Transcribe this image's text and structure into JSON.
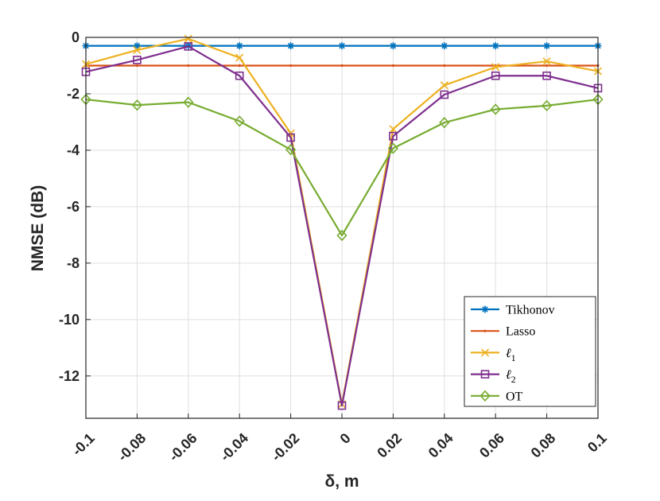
{
  "chart_data": {
    "type": "line",
    "title": "",
    "xlabel": "δ, m",
    "ylabel": "NMSE (dB)",
    "xlim": [
      -0.1,
      0.1
    ],
    "ylim": [
      -13.5,
      0
    ],
    "grid": true,
    "legend_position": "bottom-right",
    "x": [
      -0.1,
      -0.08,
      -0.06,
      -0.04,
      -0.02,
      0,
      0.02,
      0.04,
      0.06,
      0.08,
      0.1
    ],
    "x_tick_labels": [
      "-0.1",
      "-0.08",
      "-0.06",
      "-0.04",
      "-0.02",
      "0",
      "0.02",
      "0.04",
      "0.06",
      "0.08",
      "0.1"
    ],
    "y_ticks": [
      0,
      -2,
      -4,
      -6,
      -8,
      -10,
      -12
    ],
    "y_tick_labels": [
      "0",
      "-2",
      "-4",
      "-6",
      "-8",
      "-10",
      "-12"
    ],
    "series": [
      {
        "name": "Tikhonov",
        "color": "#0072BD",
        "marker": "asterisk",
        "values": [
          -0.3,
          -0.3,
          -0.3,
          -0.3,
          -0.3,
          -0.3,
          -0.3,
          -0.3,
          -0.3,
          -0.3,
          -0.3
        ]
      },
      {
        "name": "Lasso",
        "color": "#D95319",
        "marker": "point",
        "values": [
          -1.0,
          -1.0,
          -1.0,
          -1.0,
          -1.0,
          -1.0,
          -1.0,
          -1.0,
          -1.0,
          -1.0,
          -1.0
        ]
      },
      {
        "name": "ℓ1",
        "legend_main": "ℓ",
        "legend_sub": "1",
        "color": "#EDB120",
        "marker": "x",
        "values": [
          -0.95,
          -0.45,
          -0.05,
          -0.72,
          -3.4,
          -13.0,
          -3.25,
          -1.7,
          -1.05,
          -0.85,
          -1.2
        ]
      },
      {
        "name": "ℓ2",
        "legend_main": "ℓ",
        "legend_sub": "2",
        "color": "#7E2F8E",
        "marker": "square",
        "values": [
          -1.22,
          -0.8,
          -0.32,
          -1.36,
          -3.55,
          -13.05,
          -3.5,
          -2.03,
          -1.36,
          -1.36,
          -1.8
        ]
      },
      {
        "name": "OT",
        "color": "#77AC30",
        "marker": "diamond",
        "values": [
          -2.2,
          -2.4,
          -2.3,
          -2.97,
          -3.98,
          -7.02,
          -3.93,
          -3.02,
          -2.55,
          -2.42,
          -2.2
        ]
      }
    ]
  }
}
